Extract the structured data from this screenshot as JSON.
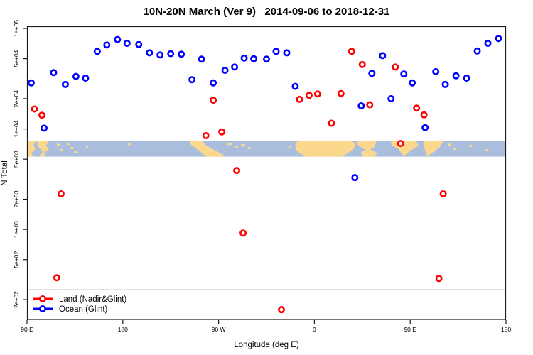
{
  "chart_data": {
    "type": "scatter",
    "title": "10N-20N March (Ver 9)   2014-09-06 to 2018-12-31",
    "xlabel": "Longitude (deg E)",
    "ylabel": "N Total",
    "y_scale": "log10",
    "grid": false,
    "legend_position": "bottom-left",
    "x_axis": {
      "min": 90,
      "max": 540,
      "ticks": [
        {
          "v": 90,
          "label": "90 E"
        },
        {
          "v": 180,
          "label": "180"
        },
        {
          "v": 270,
          "label": "90 W"
        },
        {
          "v": 360,
          "label": "0"
        },
        {
          "v": 450,
          "label": "90 E"
        },
        {
          "v": 540,
          "label": "180"
        }
      ]
    },
    "y_axis": {
      "min": 127,
      "max": 105000,
      "ticks": [
        {
          "v": 100000,
          "label": "1e+05"
        },
        {
          "v": 50000,
          "label": "5e+04"
        },
        {
          "v": 20000,
          "label": "2e+04"
        },
        {
          "v": 10000,
          "label": "1e+04"
        },
        {
          "v": 5000,
          "label": "5e+03"
        },
        {
          "v": 2000,
          "label": "2e+03"
        },
        {
          "v": 1000,
          "label": "1e+03"
        },
        {
          "v": 500,
          "label": "5e+02"
        },
        {
          "v": 200,
          "label": "2e+02"
        }
      ]
    },
    "threshold_line_n": 250,
    "map_band": {
      "n_top": 7600,
      "n_bottom": 5300,
      "ocean_color": "#a9bedd",
      "land_color": "#fbd88d",
      "land_shapes": [
        [
          [
            0,
            0
          ],
          [
            13,
            0
          ],
          [
            9,
            6
          ],
          [
            12,
            12
          ],
          [
            6,
            18
          ],
          [
            9,
            23
          ],
          [
            0,
            23
          ]
        ],
        [
          [
            14,
            0
          ],
          [
            30,
            0
          ],
          [
            27,
            7
          ],
          [
            31,
            13
          ],
          [
            24,
            17
          ],
          [
            16,
            9
          ]
        ],
        [
          [
            19,
            19
          ],
          [
            24,
            16
          ],
          [
            27,
            21
          ],
          [
            23,
            23
          ],
          [
            18,
            23
          ]
        ],
        [
          [
            42,
            4
          ],
          [
            46,
            4
          ],
          [
            46,
            7
          ],
          [
            42,
            7
          ]
        ],
        [
          [
            47,
            12
          ],
          [
            51,
            12
          ],
          [
            51,
            15
          ],
          [
            47,
            15
          ]
        ],
        [
          [
            56,
            3
          ],
          [
            60,
            3
          ],
          [
            60,
            6
          ],
          [
            56,
            6
          ]
        ],
        [
          [
            61,
            9
          ],
          [
            65,
            9
          ],
          [
            65,
            12
          ],
          [
            61,
            12
          ]
        ],
        [
          [
            66,
            15
          ],
          [
            70,
            15
          ],
          [
            70,
            18
          ],
          [
            66,
            18
          ]
        ],
        [
          [
            83,
            7
          ],
          [
            86,
            7
          ],
          [
            86,
            10
          ],
          [
            83,
            10
          ]
        ],
        [
          [
            142,
            3
          ],
          [
            146,
            3
          ],
          [
            146,
            6
          ],
          [
            142,
            6
          ]
        ],
        [
          [
            229,
            0
          ],
          [
            247,
            0
          ],
          [
            251,
            6
          ],
          [
            259,
            11
          ],
          [
            271,
            17
          ],
          [
            278,
            23
          ],
          [
            252,
            23
          ],
          [
            242,
            14
          ],
          [
            231,
            6
          ]
        ],
        [
          [
            282,
            3
          ],
          [
            288,
            3
          ],
          [
            288,
            6
          ],
          [
            282,
            6
          ]
        ],
        [
          [
            292,
            7
          ],
          [
            297,
            7
          ],
          [
            297,
            10
          ],
          [
            292,
            10
          ]
        ],
        [
          [
            301,
            5
          ],
          [
            307,
            5
          ],
          [
            307,
            8
          ],
          [
            301,
            8
          ]
        ],
        [
          [
            311,
            9
          ],
          [
            315,
            9
          ],
          [
            315,
            12
          ],
          [
            311,
            12
          ]
        ],
        [
          [
            368,
            7
          ],
          [
            372,
            7
          ],
          [
            372,
            10
          ],
          [
            368,
            10
          ]
        ],
        [
          [
            377,
            3
          ],
          [
            384,
            0
          ],
          [
            458,
            0
          ],
          [
            462,
            6
          ],
          [
            459,
            13
          ],
          [
            451,
            18
          ],
          [
            444,
            23
          ],
          [
            391,
            23
          ],
          [
            379,
            14
          ]
        ],
        [
          [
            466,
            0
          ],
          [
            492,
            0
          ],
          [
            488,
            10
          ],
          [
            477,
            14
          ],
          [
            464,
            5
          ]
        ],
        [
          [
            470,
            16
          ],
          [
            483,
            12
          ],
          [
            493,
            18
          ],
          [
            489,
            23
          ],
          [
            472,
            23
          ]
        ],
        [
          [
            512,
            0
          ],
          [
            547,
            0
          ],
          [
            551,
            7
          ],
          [
            540,
            14
          ],
          [
            530,
            23
          ],
          [
            523,
            12
          ],
          [
            513,
            6
          ]
        ],
        [
          [
            558,
            0
          ],
          [
            586,
            0
          ],
          [
            581,
            9
          ],
          [
            572,
            16
          ],
          [
            563,
            23
          ],
          [
            559,
            10
          ]
        ],
        [
          [
            592,
            4
          ],
          [
            597,
            4
          ],
          [
            597,
            8
          ],
          [
            592,
            8
          ]
        ],
        [
          [
            600,
            10
          ],
          [
            604,
            10
          ],
          [
            604,
            13
          ],
          [
            600,
            13
          ]
        ],
        [
          [
            622,
            6
          ],
          [
            626,
            6
          ],
          [
            626,
            9
          ],
          [
            622,
            9
          ]
        ],
        [
          [
            645,
            12
          ],
          [
            649,
            12
          ],
          [
            649,
            15
          ],
          [
            645,
            15
          ]
        ]
      ]
    },
    "series": [
      {
        "name": "Land (Nadir&Glint)",
        "color": "#ff0000",
        "points": [
          {
            "x": 97,
            "n": 15800
          },
          {
            "x": 104,
            "n": 13700
          },
          {
            "x": 118,
            "n": 330
          },
          {
            "x": 122,
            "n": 2260
          },
          {
            "x": 258,
            "n": 8570
          },
          {
            "x": 265,
            "n": 19300
          },
          {
            "x": 273,
            "n": 9350
          },
          {
            "x": 287,
            "n": 3860
          },
          {
            "x": 293,
            "n": 920
          },
          {
            "x": 329,
            "n": 159
          },
          {
            "x": 346,
            "n": 19700
          },
          {
            "x": 355,
            "n": 21600
          },
          {
            "x": 363,
            "n": 22300
          },
          {
            "x": 376,
            "n": 11400
          },
          {
            "x": 385,
            "n": 22500
          },
          {
            "x": 395,
            "n": 59100
          },
          {
            "x": 405,
            "n": 43700
          },
          {
            "x": 412,
            "n": 17400
          },
          {
            "x": 436,
            "n": 41300
          },
          {
            "x": 441,
            "n": 7160
          },
          {
            "x": 456,
            "n": 16100
          },
          {
            "x": 463,
            "n": 13800
          },
          {
            "x": 477,
            "n": 325
          },
          {
            "x": 481,
            "n": 2260
          }
        ]
      },
      {
        "name": "Ocean (Glint)",
        "color": "#0000ff",
        "points": [
          {
            "x": 94,
            "n": 28700
          },
          {
            "x": 106,
            "n": 10200
          },
          {
            "x": 115,
            "n": 36300
          },
          {
            "x": 126,
            "n": 27700
          },
          {
            "x": 136,
            "n": 33300
          },
          {
            "x": 145,
            "n": 32000
          },
          {
            "x": 156,
            "n": 59100
          },
          {
            "x": 165,
            "n": 68400
          },
          {
            "x": 175,
            "n": 77500
          },
          {
            "x": 184,
            "n": 71100
          },
          {
            "x": 195,
            "n": 69100
          },
          {
            "x": 205,
            "n": 57200
          },
          {
            "x": 215,
            "n": 54500
          },
          {
            "x": 225,
            "n": 56000
          },
          {
            "x": 235,
            "n": 55400
          },
          {
            "x": 245,
            "n": 30900
          },
          {
            "x": 254,
            "n": 49500
          },
          {
            "x": 265,
            "n": 28700
          },
          {
            "x": 276,
            "n": 38300
          },
          {
            "x": 285,
            "n": 41300
          },
          {
            "x": 294,
            "n": 50700
          },
          {
            "x": 303,
            "n": 49900
          },
          {
            "x": 315,
            "n": 49500
          },
          {
            "x": 324,
            "n": 59100
          },
          {
            "x": 334,
            "n": 57200
          },
          {
            "x": 342,
            "n": 26500
          },
          {
            "x": 398,
            "n": 3280
          },
          {
            "x": 404,
            "n": 17000
          },
          {
            "x": 414,
            "n": 35700
          },
          {
            "x": 424,
            "n": 53600
          },
          {
            "x": 432,
            "n": 20000
          },
          {
            "x": 444,
            "n": 35200
          },
          {
            "x": 452,
            "n": 28700
          },
          {
            "x": 464,
            "n": 10300
          },
          {
            "x": 474,
            "n": 37100
          },
          {
            "x": 483,
            "n": 27700
          },
          {
            "x": 493,
            "n": 33800
          },
          {
            "x": 503,
            "n": 32000
          },
          {
            "x": 513,
            "n": 59700
          },
          {
            "x": 523,
            "n": 71100
          },
          {
            "x": 533,
            "n": 79300
          }
        ]
      }
    ],
    "marker": {
      "shape": "open-circle",
      "radius": 3.7,
      "stroke_width": 2.6,
      "fill": "#ffffff"
    },
    "axis_color": "#1a1a1a"
  }
}
